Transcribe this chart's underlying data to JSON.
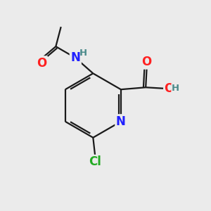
{
  "bg_color": "#ebebeb",
  "bond_color": "#1a1a1a",
  "bond_width": 1.6,
  "atom_colors": {
    "N": "#2020ff",
    "O": "#ff2020",
    "Cl": "#22aa22",
    "H": "#4a8a8a"
  },
  "font_size": 12,
  "small_font": 9.5
}
